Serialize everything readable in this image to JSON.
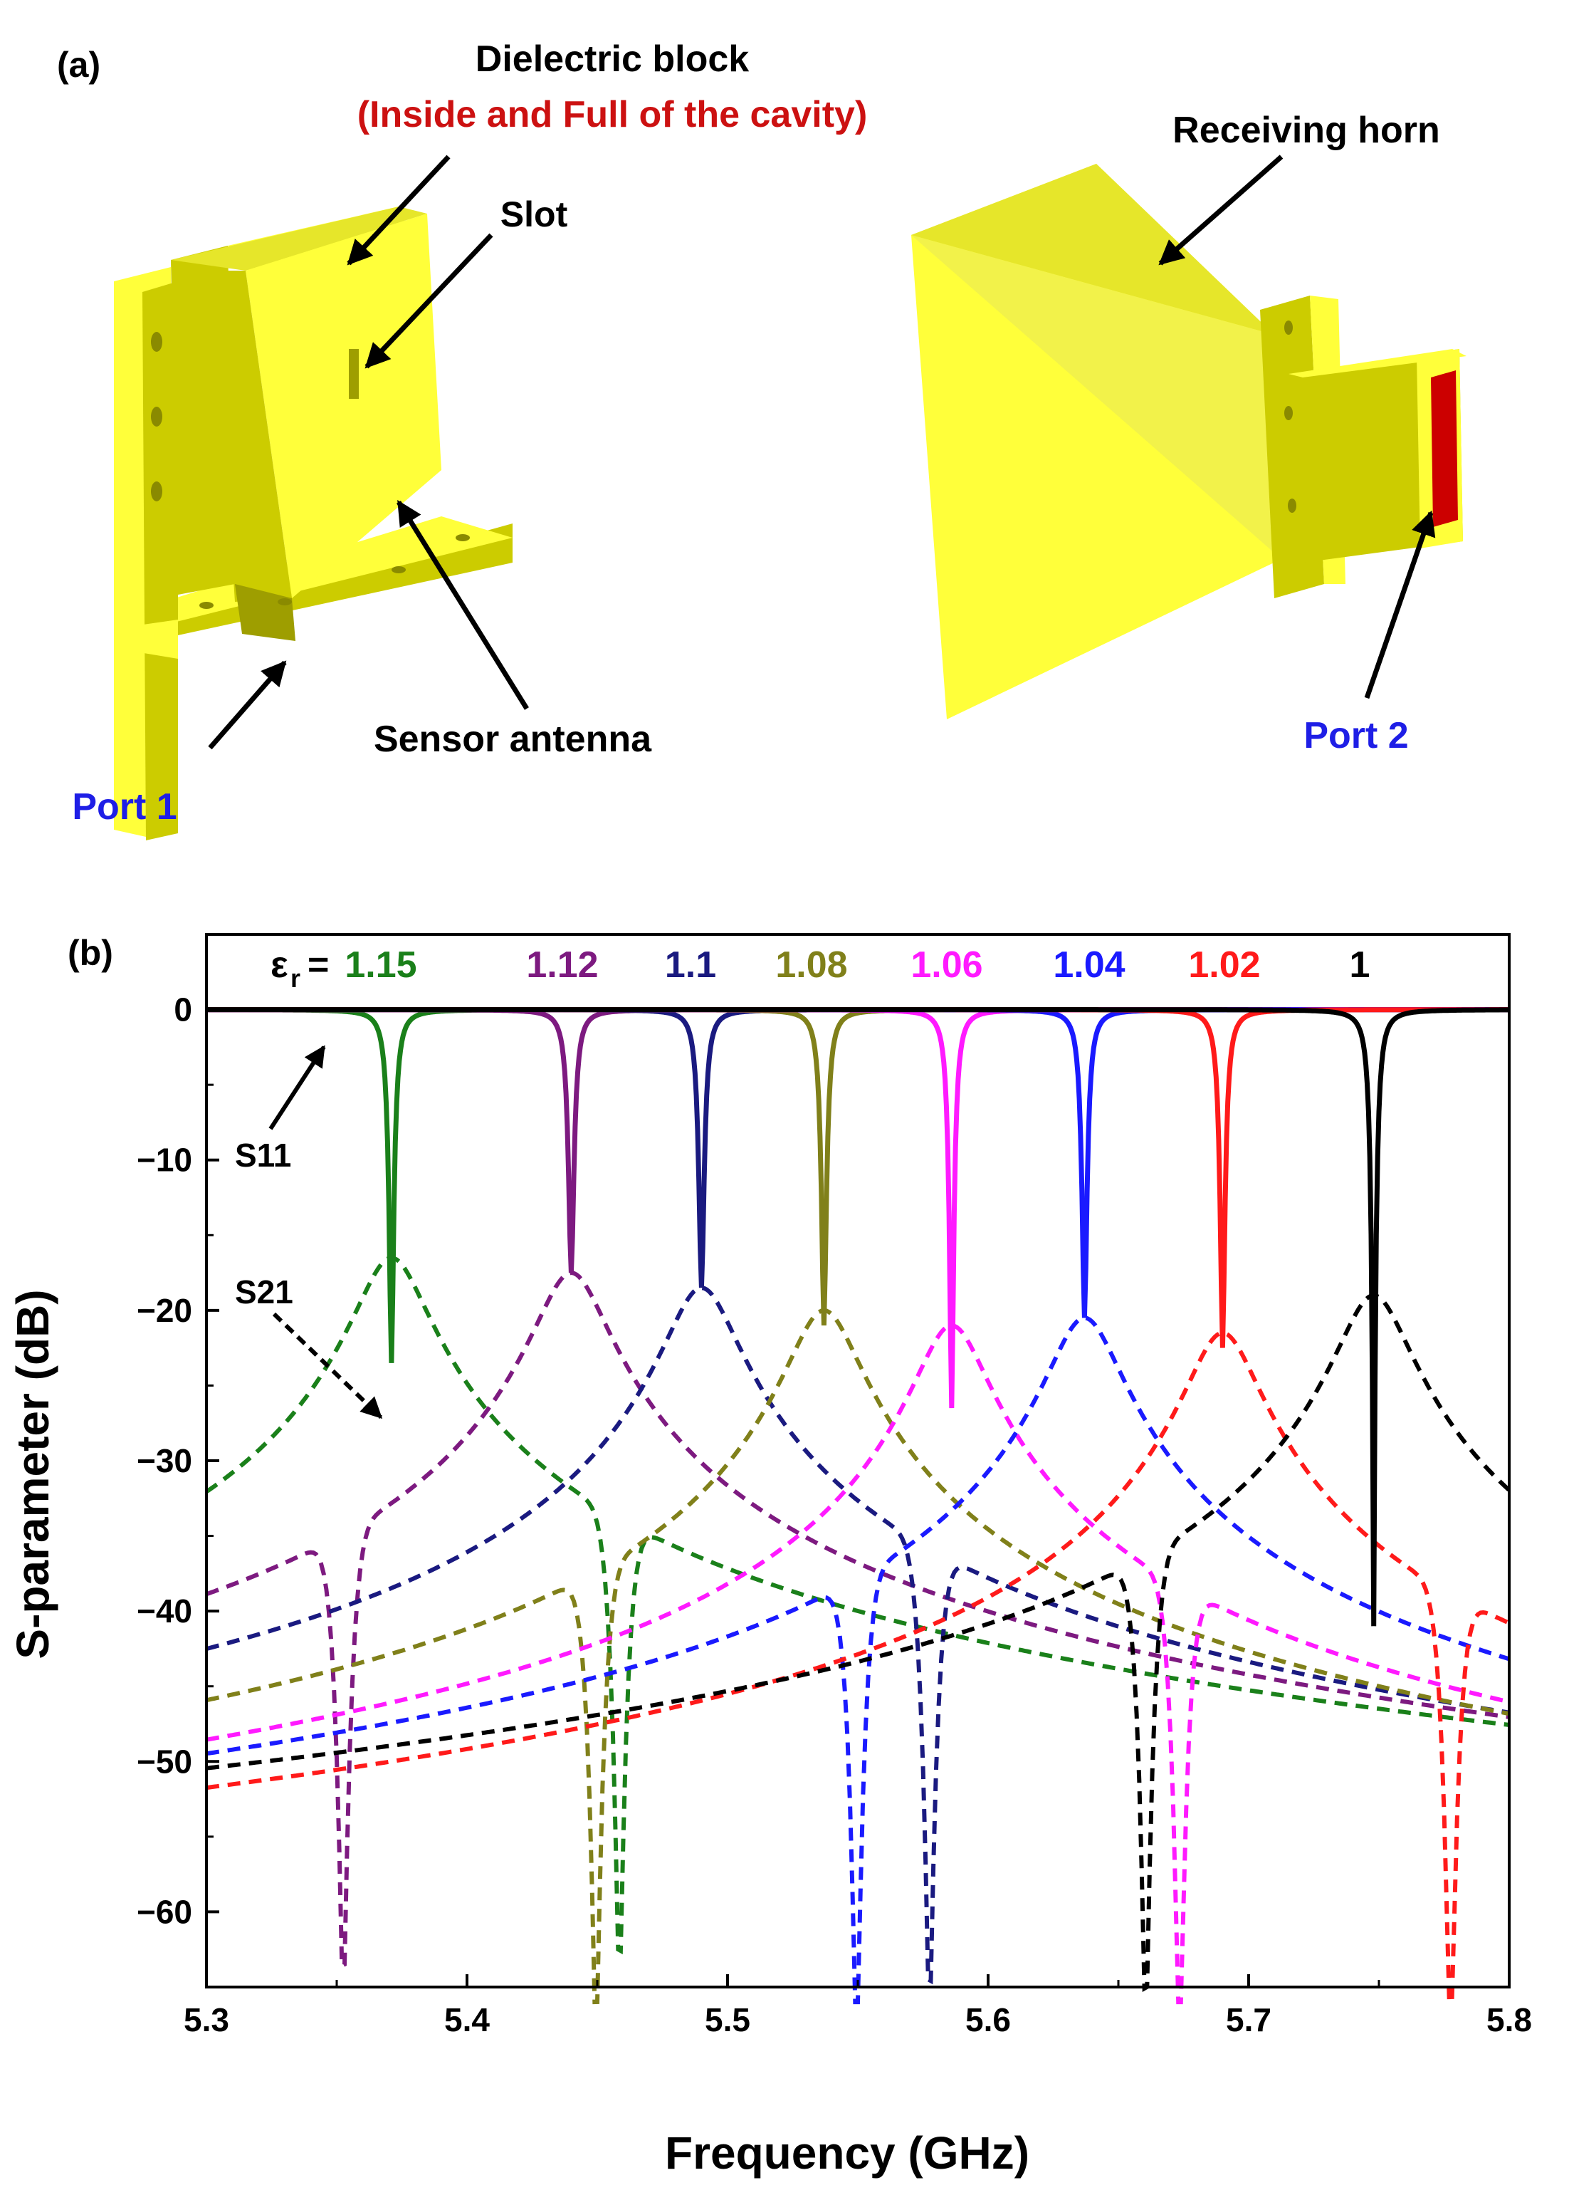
{
  "panel_a": {
    "label": "(a)",
    "dielectric_block": "Dielectric block",
    "dielectric_note": "(Inside and Full of the cavity)",
    "slot": "Slot",
    "sensor_antenna": "Sensor antenna",
    "port1": "Port 1",
    "receiving_horn": "Receiving horn",
    "port2": "Port 2",
    "colors": {
      "body": "#ffff3a",
      "shade": "#cccc00",
      "dark": "#9e9e00",
      "port": "#cc0000",
      "label_red": "#cc1111",
      "label_blue": "#1e1ee6"
    }
  },
  "panel_b": {
    "label": "(b)"
  },
  "chart_data": {
    "type": "line",
    "xlabel": "Frequency (GHz)",
    "ylabel": "S-parameter (dB)",
    "xlim": [
      5.3,
      5.8
    ],
    "ylim": [
      -65,
      5
    ],
    "xticks": [
      "5.3",
      "5.4",
      "5.5",
      "5.6",
      "5.7",
      "5.8"
    ],
    "yticks": [
      "0",
      "−10",
      "−20",
      "−30",
      "−40",
      "−50",
      "−60"
    ],
    "grid": false,
    "legend_prefix": "ε",
    "legend_sub": "r",
    "legend_eq": "=",
    "annotations": {
      "s11": "S11",
      "s21": "S21"
    },
    "series": [
      {
        "name": "1.15",
        "color": "#1a801a",
        "f0": 5.371,
        "s11_min": -23.5,
        "s21_peak": -16.5
      },
      {
        "name": "1.12",
        "color": "#7d1a80",
        "f0": 5.44,
        "s11_min": -17.5,
        "s21_peak": -17.5
      },
      {
        "name": "1.1",
        "color": "#1a1a80",
        "f0": 5.49,
        "s11_min": -18.5,
        "s21_peak": -18.5
      },
      {
        "name": "1.08",
        "color": "#80801a",
        "f0": 5.537,
        "s11_min": -21.0,
        "s21_peak": -20.0
      },
      {
        "name": "1.06",
        "color": "#ff1aff",
        "f0": 5.586,
        "s11_min": -26.5,
        "s21_peak": -21.0
      },
      {
        "name": "1.04",
        "color": "#1a1aff",
        "f0": 5.637,
        "s11_min": -20.5,
        "s21_peak": -20.5
      },
      {
        "name": "1.02",
        "color": "#ff1a1a",
        "f0": 5.69,
        "s11_min": -22.5,
        "s21_peak": -21.5
      },
      {
        "name": "1",
        "color": "#000000",
        "f0": 5.748,
        "s11_min": -41.0,
        "s21_peak": -19.0
      }
    ]
  }
}
